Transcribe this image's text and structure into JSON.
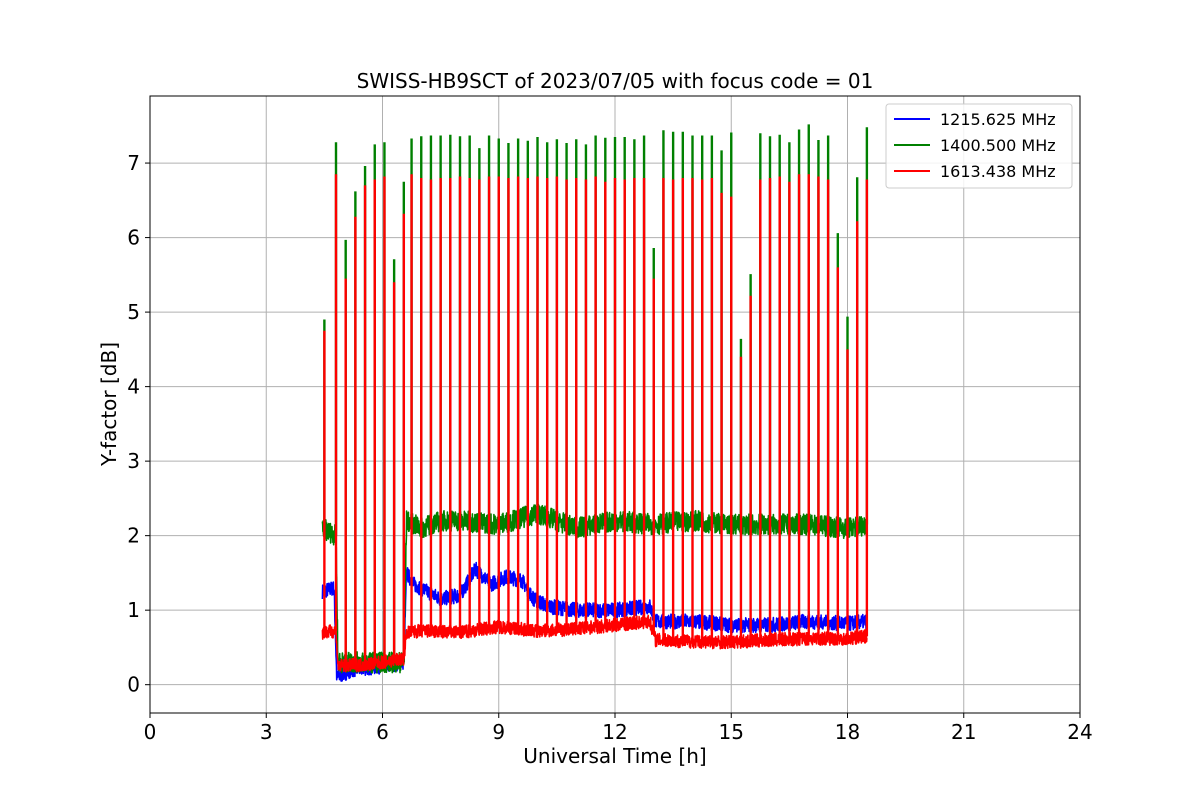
{
  "chart_data": {
    "type": "line",
    "title": "SWISS-HB9SCT of 2023/07/05 with focus code = 01",
    "xlabel": "Universal Time [h]",
    "ylabel": "Y-factor [dB]",
    "xlim": [
      0,
      24
    ],
    "ylim": [
      -0.38,
      7.9
    ],
    "xticks": [
      0,
      3,
      6,
      9,
      12,
      15,
      18,
      21,
      24
    ],
    "yticks": [
      0,
      1,
      2,
      3,
      4,
      5,
      6,
      7
    ],
    "xtick_labels": [
      "0",
      "3",
      "6",
      "9",
      "12",
      "15",
      "18",
      "21",
      "24"
    ],
    "ytick_labels": [
      "0",
      "1",
      "2",
      "3",
      "4",
      "5",
      "6",
      "7"
    ],
    "grid": true,
    "legend_position": "top-right",
    "legend": [
      "1215.625 MHz",
      "1400.500 MHz",
      "1613.438 MHz"
    ],
    "data_range_hours": [
      4.45,
      18.5
    ],
    "series": [
      {
        "name": "1215.625 MHz",
        "color": "#0000ff",
        "baseline": [
          [
            4.45,
            1.25
          ],
          [
            4.75,
            1.3
          ],
          [
            4.82,
            0.1
          ],
          [
            5.2,
            0.2
          ],
          [
            6.0,
            0.25
          ],
          [
            6.55,
            0.3
          ],
          [
            6.62,
            1.5
          ],
          [
            6.8,
            1.35
          ],
          [
            7.5,
            1.15
          ],
          [
            8.0,
            1.2
          ],
          [
            8.4,
            1.55
          ],
          [
            8.8,
            1.35
          ],
          [
            9.2,
            1.45
          ],
          [
            9.6,
            1.4
          ],
          [
            9.9,
            1.15
          ],
          [
            10.3,
            1.05
          ],
          [
            11.0,
            1.0
          ],
          [
            12.0,
            1.0
          ],
          [
            12.9,
            1.05
          ],
          [
            13.05,
            0.85
          ],
          [
            14.0,
            0.85
          ],
          [
            15.0,
            0.8
          ],
          [
            16.0,
            0.8
          ],
          [
            17.0,
            0.85
          ],
          [
            18.0,
            0.82
          ],
          [
            18.5,
            0.85
          ]
        ],
        "amplitude": 0.1
      },
      {
        "name": "1400.500 MHz",
        "color": "#008000",
        "baseline": [
          [
            4.45,
            2.1
          ],
          [
            4.8,
            2.0
          ],
          [
            4.85,
            0.3
          ],
          [
            6.0,
            0.3
          ],
          [
            6.55,
            0.3
          ],
          [
            6.62,
            2.2
          ],
          [
            7.0,
            2.1
          ],
          [
            7.5,
            2.2
          ],
          [
            8.0,
            2.2
          ],
          [
            9.0,
            2.15
          ],
          [
            10.0,
            2.3
          ],
          [
            11.0,
            2.1
          ],
          [
            12.0,
            2.2
          ],
          [
            13.0,
            2.15
          ],
          [
            14.0,
            2.2
          ],
          [
            15.0,
            2.15
          ],
          [
            16.0,
            2.15
          ],
          [
            17.0,
            2.15
          ],
          [
            18.0,
            2.1
          ],
          [
            18.5,
            2.15
          ]
        ],
        "amplitude": 0.14,
        "spikes": [
          [
            4.5,
            4.9
          ],
          [
            4.8,
            7.28
          ],
          [
            5.05,
            5.97
          ],
          [
            5.3,
            6.62
          ],
          [
            5.55,
            6.96
          ],
          [
            5.8,
            7.25
          ],
          [
            6.05,
            7.28
          ],
          [
            6.3,
            5.71
          ],
          [
            6.55,
            6.75
          ],
          [
            6.75,
            7.33
          ],
          [
            7.0,
            7.36
          ],
          [
            7.25,
            7.37
          ],
          [
            7.5,
            7.37
          ],
          [
            7.75,
            7.38
          ],
          [
            8.0,
            7.36
          ],
          [
            8.25,
            7.37
          ],
          [
            8.5,
            7.2
          ],
          [
            8.75,
            7.37
          ],
          [
            9.0,
            7.33
          ],
          [
            9.25,
            7.27
          ],
          [
            9.5,
            7.33
          ],
          [
            9.75,
            7.3
          ],
          [
            10.0,
            7.35
          ],
          [
            10.25,
            7.28
          ],
          [
            10.5,
            7.32
          ],
          [
            10.75,
            7.27
          ],
          [
            11.0,
            7.32
          ],
          [
            11.25,
            7.25
          ],
          [
            11.5,
            7.37
          ],
          [
            11.75,
            7.34
          ],
          [
            12.0,
            7.35
          ],
          [
            12.25,
            7.35
          ],
          [
            12.5,
            7.32
          ],
          [
            12.75,
            7.37
          ],
          [
            13.0,
            5.86
          ],
          [
            13.25,
            7.44
          ],
          [
            13.5,
            7.42
          ],
          [
            13.75,
            7.42
          ],
          [
            14.0,
            7.37
          ],
          [
            14.25,
            7.37
          ],
          [
            14.5,
            7.37
          ],
          [
            14.75,
            7.17
          ],
          [
            15.0,
            7.41
          ],
          [
            15.25,
            4.64
          ],
          [
            15.5,
            5.51
          ],
          [
            15.75,
            7.4
          ],
          [
            16.0,
            7.36
          ],
          [
            16.25,
            7.38
          ],
          [
            16.5,
            7.28
          ],
          [
            16.75,
            7.45
          ],
          [
            17.0,
            7.52
          ],
          [
            17.25,
            7.31
          ],
          [
            17.5,
            7.37
          ],
          [
            17.75,
            6.06
          ],
          [
            18.0,
            4.94
          ],
          [
            18.25,
            6.81
          ],
          [
            18.5,
            7.48
          ]
        ]
      },
      {
        "name": "1613.438 MHz",
        "color": "#ff0000",
        "baseline": [
          [
            4.45,
            0.7
          ],
          [
            4.8,
            0.72
          ],
          [
            4.85,
            0.25
          ],
          [
            5.5,
            0.27
          ],
          [
            6.0,
            0.3
          ],
          [
            6.55,
            0.35
          ],
          [
            6.62,
            0.7
          ],
          [
            7.0,
            0.72
          ],
          [
            8.0,
            0.7
          ],
          [
            9.0,
            0.78
          ],
          [
            10.0,
            0.72
          ],
          [
            11.0,
            0.75
          ],
          [
            12.0,
            0.8
          ],
          [
            12.9,
            0.85
          ],
          [
            13.05,
            0.6
          ],
          [
            14.0,
            0.58
          ],
          [
            15.0,
            0.57
          ],
          [
            16.0,
            0.6
          ],
          [
            17.0,
            0.62
          ],
          [
            18.0,
            0.62
          ],
          [
            18.5,
            0.65
          ]
        ],
        "amplitude": 0.09,
        "spikes": [
          [
            4.5,
            4.75
          ],
          [
            4.8,
            6.85
          ],
          [
            5.05,
            5.45
          ],
          [
            5.3,
            6.28
          ],
          [
            5.55,
            6.7
          ],
          [
            5.8,
            6.78
          ],
          [
            6.05,
            6.82
          ],
          [
            6.3,
            5.4
          ],
          [
            6.55,
            6.32
          ],
          [
            6.75,
            6.85
          ],
          [
            7.0,
            6.8
          ],
          [
            7.25,
            6.78
          ],
          [
            7.5,
            6.8
          ],
          [
            7.75,
            6.8
          ],
          [
            8.0,
            6.82
          ],
          [
            8.25,
            6.8
          ],
          [
            8.5,
            6.78
          ],
          [
            8.75,
            6.82
          ],
          [
            9.0,
            6.82
          ],
          [
            9.25,
            6.8
          ],
          [
            9.5,
            6.82
          ],
          [
            9.75,
            6.8
          ],
          [
            10.0,
            6.82
          ],
          [
            10.25,
            6.8
          ],
          [
            10.5,
            6.82
          ],
          [
            10.75,
            6.78
          ],
          [
            11.0,
            6.8
          ],
          [
            11.25,
            6.78
          ],
          [
            11.5,
            6.82
          ],
          [
            11.75,
            6.75
          ],
          [
            12.0,
            6.8
          ],
          [
            12.25,
            6.78
          ],
          [
            12.5,
            6.8
          ],
          [
            12.75,
            6.8
          ],
          [
            13.0,
            5.45
          ],
          [
            13.25,
            6.8
          ],
          [
            13.5,
            6.78
          ],
          [
            13.75,
            6.8
          ],
          [
            14.0,
            6.8
          ],
          [
            14.25,
            6.78
          ],
          [
            14.5,
            6.8
          ],
          [
            14.75,
            6.6
          ],
          [
            15.0,
            6.55
          ],
          [
            15.25,
            4.4
          ],
          [
            15.5,
            5.22
          ],
          [
            15.75,
            6.78
          ],
          [
            16.0,
            6.8
          ],
          [
            16.25,
            6.82
          ],
          [
            16.5,
            6.75
          ],
          [
            16.75,
            6.85
          ],
          [
            17.0,
            6.85
          ],
          [
            17.25,
            6.82
          ],
          [
            17.5,
            6.78
          ],
          [
            17.75,
            5.6
          ],
          [
            18.0,
            4.5
          ],
          [
            18.25,
            6.22
          ],
          [
            18.5,
            6.78
          ]
        ]
      }
    ]
  }
}
